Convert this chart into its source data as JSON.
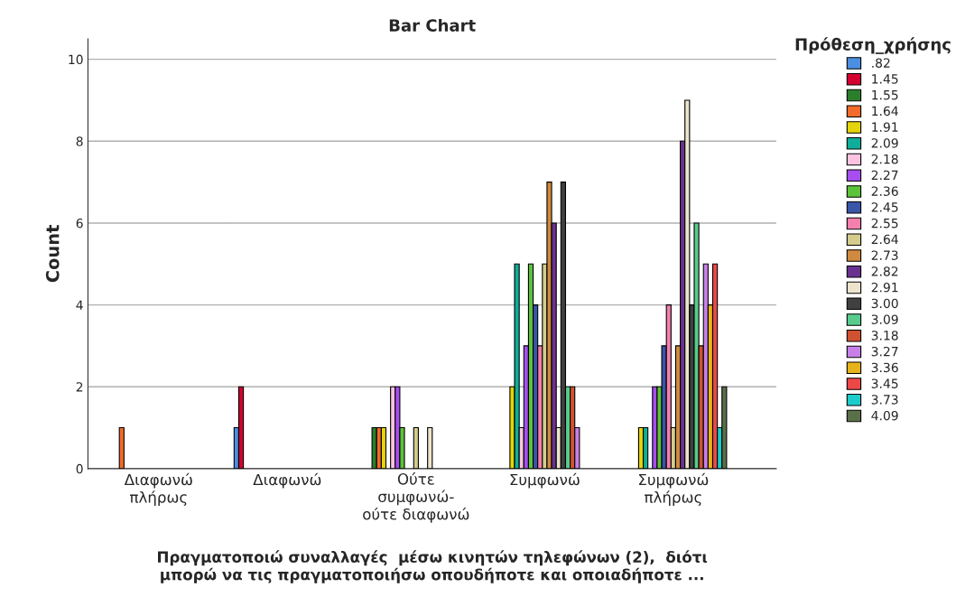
{
  "chart_data": {
    "type": "bar",
    "title": "Bar Chart",
    "xlabel": "Πραγματοποιώ συναλλαγές  μέσω κινητών τηλεφώνων (2),  διότι\nμπορώ να τις πραγματοποιήσω οπουδήποτε και οποιαδήποτε ...",
    "ylabel": "Count",
    "legend_title": "Πρόθεση_χρήσης",
    "categories": [
      "Διαφωνώ\nπλήρως",
      "Διαφωνώ",
      "Ούτε\nσυμφωνώ-\nούτε διαφωνώ",
      "Συμφωνώ",
      "Συμφωνώ\nπλήρως"
    ],
    "ylim": [
      0,
      10.5
    ],
    "yticks": [
      0,
      2,
      4,
      6,
      8,
      10
    ],
    "grid": "y",
    "legend": "right",
    "series": [
      {
        "name": ".82",
        "color": "#4a8fe0",
        "values": [
          null,
          1,
          null,
          null,
          null
        ]
      },
      {
        "name": "1.45",
        "color": "#d4002f",
        "values": [
          null,
          2,
          null,
          null,
          null
        ]
      },
      {
        "name": "1.55",
        "color": "#2a7f2a",
        "values": [
          null,
          null,
          1,
          null,
          null
        ]
      },
      {
        "name": "1.64",
        "color": "#f26b2a",
        "values": [
          1,
          null,
          1,
          null,
          null
        ]
      },
      {
        "name": "1.91",
        "color": "#e6d40a",
        "values": [
          null,
          null,
          1,
          2,
          1
        ]
      },
      {
        "name": "2.09",
        "color": "#0fae9a",
        "values": [
          null,
          null,
          null,
          5,
          1
        ]
      },
      {
        "name": "2.18",
        "color": "#fbc3e0",
        "values": [
          null,
          null,
          2,
          1,
          null
        ]
      },
      {
        "name": "2.27",
        "color": "#a64ef0",
        "values": [
          null,
          null,
          2,
          3,
          2
        ]
      },
      {
        "name": "2.36",
        "color": "#5cc43a",
        "values": [
          null,
          null,
          1,
          5,
          2
        ]
      },
      {
        "name": "2.45",
        "color": "#3a56a8",
        "values": [
          null,
          null,
          null,
          4,
          3
        ]
      },
      {
        "name": "2.55",
        "color": "#f77fae",
        "values": [
          null,
          null,
          null,
          3,
          4
        ]
      },
      {
        "name": "2.64",
        "color": "#d4cc8c",
        "values": [
          null,
          null,
          1,
          5,
          1
        ]
      },
      {
        "name": "2.73",
        "color": "#d08a40",
        "values": [
          null,
          null,
          null,
          7,
          3
        ]
      },
      {
        "name": "2.82",
        "color": "#6a3290",
        "values": [
          null,
          null,
          null,
          6,
          8
        ]
      },
      {
        "name": "2.91",
        "color": "#ece4cc",
        "values": [
          null,
          null,
          1,
          1,
          9
        ]
      },
      {
        "name": "3.00",
        "color": "#404040",
        "values": [
          null,
          null,
          null,
          7,
          4
        ]
      },
      {
        "name": "3.09",
        "color": "#58cc8c",
        "values": [
          null,
          null,
          null,
          2,
          6
        ]
      },
      {
        "name": "3.18",
        "color": "#d05230",
        "values": [
          null,
          null,
          null,
          2,
          3
        ]
      },
      {
        "name": "3.27",
        "color": "#c880e8",
        "values": [
          null,
          null,
          null,
          1,
          5
        ]
      },
      {
        "name": "3.36",
        "color": "#e6b41a",
        "values": [
          null,
          null,
          null,
          null,
          4
        ]
      },
      {
        "name": "3.45",
        "color": "#ec4848",
        "values": [
          null,
          null,
          null,
          null,
          5
        ]
      },
      {
        "name": "3.73",
        "color": "#1ccccc",
        "values": [
          null,
          null,
          null,
          null,
          1
        ]
      },
      {
        "name": "4.09",
        "color": "#5a7048",
        "values": [
          null,
          null,
          null,
          null,
          2
        ]
      }
    ]
  }
}
